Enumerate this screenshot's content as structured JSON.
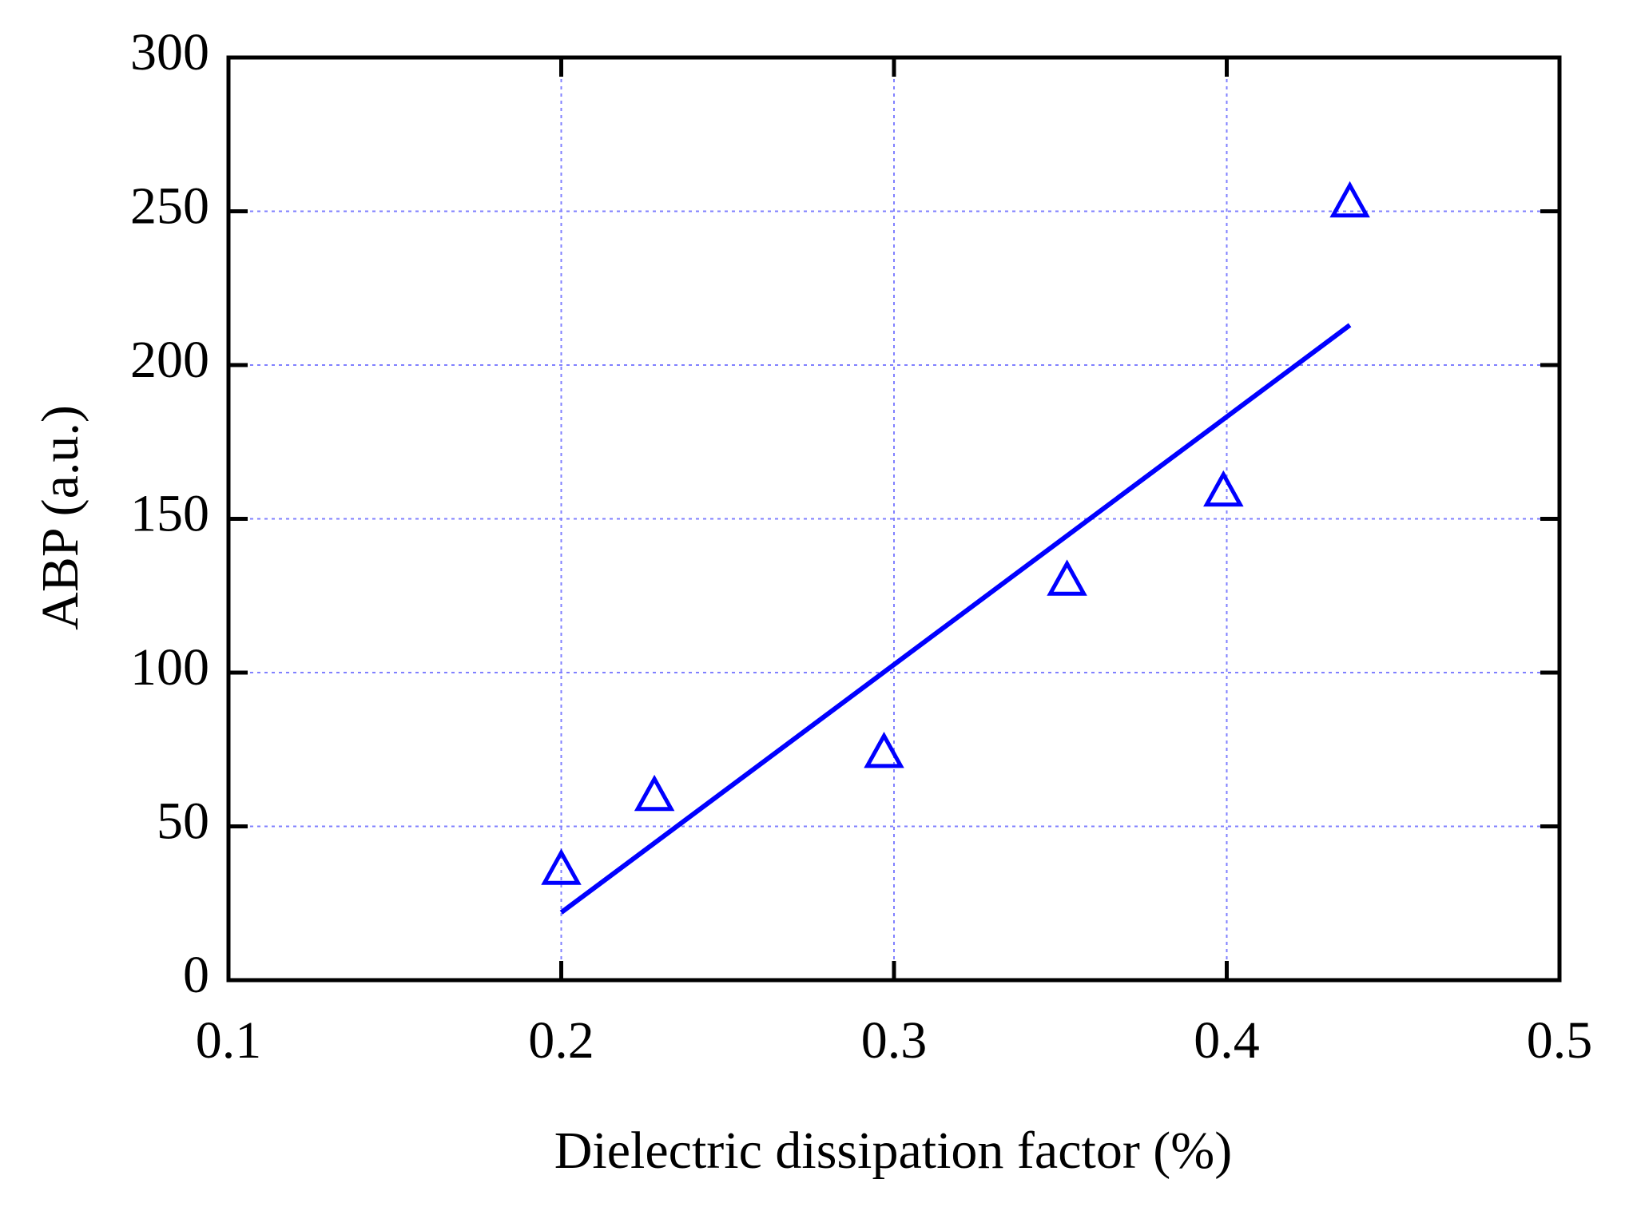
{
  "chart_data": {
    "type": "scatter",
    "x_label": "Dielectric dissipation factor (%)",
    "y_label": "ABP (a.u.)",
    "xlim": [
      0.1,
      0.5
    ],
    "xticks": [
      0.1,
      0.2,
      0.3,
      0.4,
      0.5
    ],
    "ylim": [
      0,
      300
    ],
    "yticks": [
      0,
      50,
      100,
      150,
      200,
      250,
      300
    ],
    "grid": true,
    "series": [
      {
        "mode": "markers",
        "marker": "triangle-open",
        "color": "#0000ff",
        "x": [
          0.2,
          0.228,
          0.297,
          0.352,
          0.399,
          0.437
        ],
        "values": [
          36,
          60,
          74,
          130,
          159,
          253
        ]
      },
      {
        "mode": "line",
        "color": "#0000ff",
        "x": [
          0.2,
          0.437
        ],
        "values": [
          22,
          213
        ]
      }
    ]
  }
}
